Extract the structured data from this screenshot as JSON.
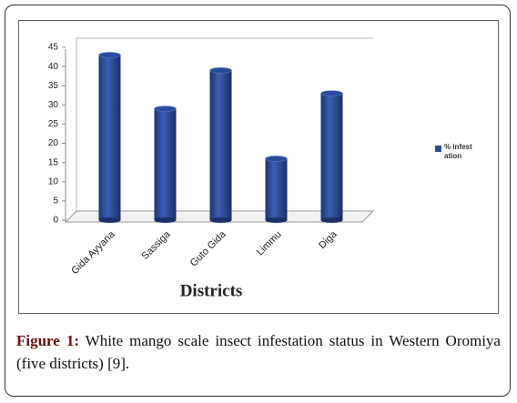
{
  "chart_data": {
    "type": "bar",
    "categories": [
      "Gida Ayyana",
      "Sassiga",
      "Guto Gida",
      "Limmu",
      "Diga"
    ],
    "series": [
      {
        "name": "% infestation",
        "color": "#2b4c9b",
        "values": [
          43,
          29,
          39,
          16,
          33
        ]
      }
    ],
    "ylim": [
      0,
      45
    ],
    "yticks": [
      0,
      5,
      10,
      15,
      20,
      25,
      30,
      35,
      40,
      45
    ],
    "xlabel": "Districts",
    "legend": "right",
    "caption_label": "Figure 1:",
    "caption": "White mango scale insect infestation status in Western Oromiya (five districts) [9]."
  }
}
